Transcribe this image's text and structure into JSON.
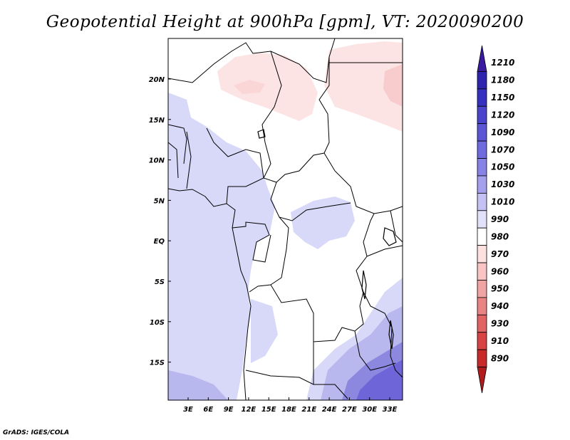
{
  "title": "Geopotential Height at 900hPa [gpm], VT: 2020090200",
  "credit": "GrADS: IGES/COLA",
  "lat_labels": [
    "20N",
    "15N",
    "10N",
    "5N",
    "EQ",
    "5S",
    "10S",
    "15S"
  ],
  "lon_labels": [
    "3E",
    "6E",
    "9E",
    "12E",
    "15E",
    "18E",
    "21E",
    "24E",
    "27E",
    "30E",
    "33E"
  ],
  "colorbar": {
    "levels": [
      "1210",
      "1180",
      "1150",
      "1120",
      "1090",
      "1070",
      "1050",
      "1030",
      "1010",
      "990",
      "980",
      "970",
      "960",
      "950",
      "940",
      "930",
      "910",
      "890"
    ],
    "colors": [
      "#3a1a9e",
      "#2e24b0",
      "#3530c0",
      "#4a44cc",
      "#5c56d6",
      "#6f6ade",
      "#8782e6",
      "#a4a0ee",
      "#c4c2f4",
      "#e2e1fa",
      "#ffffff",
      "#fde0e0",
      "#f8c4c4",
      "#f0a4a4",
      "#e88484",
      "#e06464",
      "#d84444",
      "#c82a2a",
      "#b01c1c"
    ]
  },
  "fields": {
    "lavender": "#d8d8f8",
    "pink": "#fde4e4",
    "blue_mid": "#b8b8ee",
    "blue_dark": "#8c88e0",
    "blue_deep": "#6e66d8"
  }
}
